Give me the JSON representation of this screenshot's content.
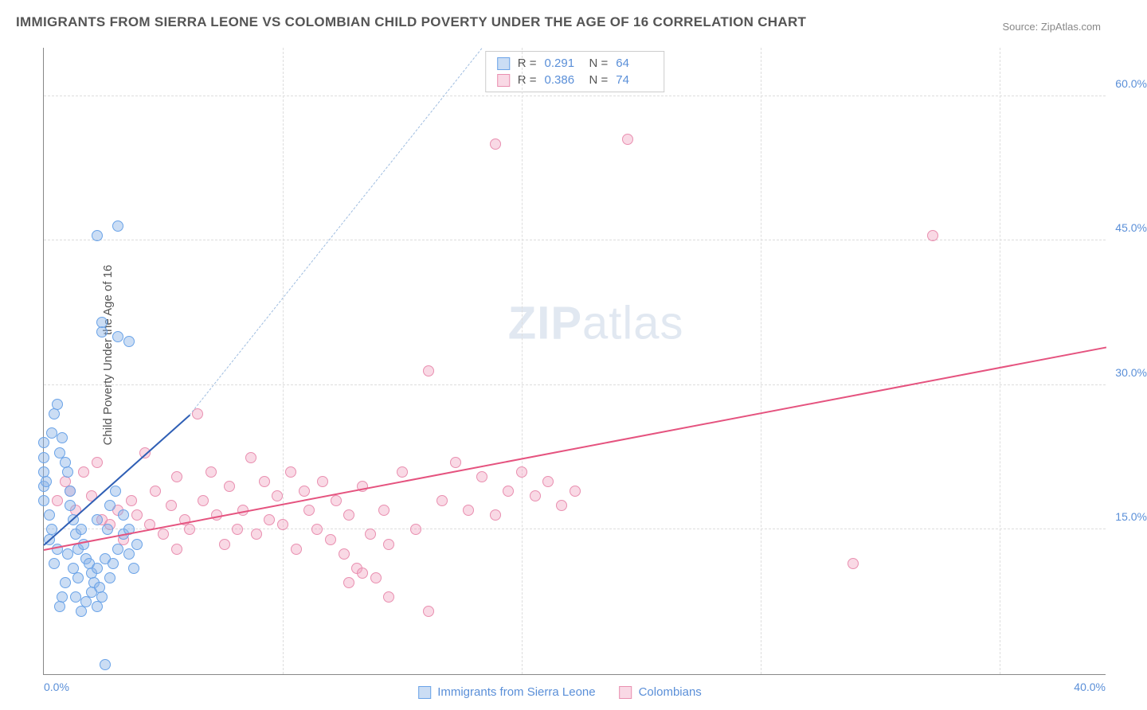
{
  "title": "IMMIGRANTS FROM SIERRA LEONE VS COLOMBIAN CHILD POVERTY UNDER THE AGE OF 16 CORRELATION CHART",
  "source_label": "Source: ZipAtlas.com",
  "ylabel": "Child Poverty Under the Age of 16",
  "watermark_bold": "ZIP",
  "watermark_light": "atlas",
  "chart": {
    "type": "scatter",
    "xlim": [
      0,
      40
    ],
    "ylim": [
      0,
      65
    ],
    "xtick_labels": [
      "0.0%",
      "40.0%"
    ],
    "ytick_values": [
      15,
      30,
      45,
      60
    ],
    "ytick_labels": [
      "15.0%",
      "30.0%",
      "45.0%",
      "60.0%"
    ],
    "xtick_grid": [
      9,
      18,
      27,
      36
    ],
    "background_color": "#ffffff",
    "grid_color": "#dddddd",
    "axis_color": "#888888",
    "tick_label_color": "#5a8fd8",
    "marker_radius": 7,
    "marker_opacity": 0.55
  },
  "series": [
    {
      "key": "sierra_leone",
      "label": "Immigrants from Sierra Leone",
      "color_stroke": "#6aa3e8",
      "color_fill": "rgba(140,180,230,0.45)",
      "r_label": "R =",
      "r_value": "0.291",
      "n_label": "N =",
      "n_value": "64",
      "trend_solid": {
        "x1": 0.0,
        "y1": 13.5,
        "x2": 5.5,
        "y2": 27.0,
        "color": "#2f5fb5"
      },
      "trend_dash": {
        "x1": 5.5,
        "y1": 27.0,
        "x2": 16.5,
        "y2": 65.0,
        "color": "#9fbde0"
      },
      "points": [
        [
          0.0,
          18
        ],
        [
          0.0,
          19.5
        ],
        [
          0.0,
          21
        ],
        [
          0.0,
          22.5
        ],
        [
          0.0,
          24
        ],
        [
          0.1,
          20
        ],
        [
          0.2,
          16.5
        ],
        [
          0.2,
          14
        ],
        [
          0.3,
          15
        ],
        [
          0.4,
          27
        ],
        [
          0.5,
          28
        ],
        [
          0.3,
          25
        ],
        [
          0.6,
          23
        ],
        [
          0.7,
          24.5
        ],
        [
          0.8,
          22
        ],
        [
          0.9,
          21
        ],
        [
          1.0,
          19
        ],
        [
          1.0,
          17.5
        ],
        [
          1.1,
          16
        ],
        [
          1.2,
          14.5
        ],
        [
          1.3,
          13
        ],
        [
          1.4,
          15
        ],
        [
          1.5,
          13.5
        ],
        [
          1.6,
          12
        ],
        [
          1.7,
          11.5
        ],
        [
          1.8,
          10.5
        ],
        [
          1.9,
          9.5
        ],
        [
          2.0,
          11
        ],
        [
          2.1,
          9
        ],
        [
          2.2,
          8
        ],
        [
          2.0,
          7
        ],
        [
          1.8,
          8.5
        ],
        [
          1.6,
          7.5
        ],
        [
          1.4,
          6.5
        ],
        [
          1.2,
          8
        ],
        [
          1.3,
          10
        ],
        [
          1.1,
          11
        ],
        [
          0.9,
          12.5
        ],
        [
          0.8,
          9.5
        ],
        [
          0.7,
          8
        ],
        [
          0.6,
          7
        ],
        [
          0.5,
          13
        ],
        [
          0.4,
          11.5
        ],
        [
          2.3,
          12
        ],
        [
          2.5,
          10
        ],
        [
          2.6,
          11.5
        ],
        [
          2.8,
          13
        ],
        [
          3.0,
          14.5
        ],
        [
          3.2,
          12.5
        ],
        [
          3.4,
          11
        ],
        [
          2.4,
          15
        ],
        [
          2.0,
          16
        ],
        [
          2.5,
          17.5
        ],
        [
          2.7,
          19
        ],
        [
          3.0,
          16.5
        ],
        [
          3.2,
          15
        ],
        [
          3.5,
          13.5
        ],
        [
          2.2,
          35.5
        ],
        [
          2.2,
          36.5
        ],
        [
          2.8,
          35
        ],
        [
          3.2,
          34.5
        ],
        [
          2.0,
          45.5
        ],
        [
          2.8,
          46.5
        ],
        [
          2.3,
          1.0
        ]
      ]
    },
    {
      "key": "colombians",
      "label": "Colombians",
      "color_stroke": "#e98fb0",
      "color_fill": "rgba(240,160,190,0.40)",
      "r_label": "R =",
      "r_value": "0.386",
      "n_label": "N =",
      "n_value": "74",
      "trend_solid": {
        "x1": 0.0,
        "y1": 13.0,
        "x2": 40.0,
        "y2": 34.0,
        "color": "#e5537f"
      },
      "trend_dash": null,
      "points": [
        [
          0.5,
          18
        ],
        [
          0.8,
          20
        ],
        [
          1.0,
          19
        ],
        [
          1.2,
          17
        ],
        [
          1.5,
          21
        ],
        [
          1.8,
          18.5
        ],
        [
          2.0,
          22
        ],
        [
          2.2,
          16
        ],
        [
          2.5,
          15.5
        ],
        [
          2.8,
          17
        ],
        [
          3.0,
          14
        ],
        [
          3.3,
          18
        ],
        [
          3.5,
          16.5
        ],
        [
          3.8,
          23
        ],
        [
          4.0,
          15.5
        ],
        [
          4.2,
          19
        ],
        [
          4.5,
          14.5
        ],
        [
          4.8,
          17.5
        ],
        [
          5.0,
          20.5
        ],
        [
          5.3,
          16
        ],
        [
          5.5,
          15
        ],
        [
          5.8,
          27
        ],
        [
          6.0,
          18
        ],
        [
          6.3,
          21
        ],
        [
          6.5,
          16.5
        ],
        [
          6.8,
          13.5
        ],
        [
          7.0,
          19.5
        ],
        [
          7.3,
          15
        ],
        [
          7.5,
          17
        ],
        [
          7.8,
          22.5
        ],
        [
          8.0,
          14.5
        ],
        [
          8.3,
          20
        ],
        [
          8.5,
          16
        ],
        [
          8.8,
          18.5
        ],
        [
          9.0,
          15.5
        ],
        [
          9.3,
          21
        ],
        [
          9.5,
          13
        ],
        [
          9.8,
          19
        ],
        [
          10.0,
          17
        ],
        [
          10.3,
          15
        ],
        [
          10.5,
          20
        ],
        [
          10.8,
          14
        ],
        [
          11.0,
          18
        ],
        [
          11.3,
          12.5
        ],
        [
          11.5,
          16.5
        ],
        [
          11.8,
          11
        ],
        [
          12.0,
          19.5
        ],
        [
          12.3,
          14.5
        ],
        [
          12.5,
          10
        ],
        [
          12.8,
          17
        ],
        [
          13.0,
          13.5
        ],
        [
          13.5,
          21
        ],
        [
          14.0,
          15
        ],
        [
          14.5,
          31.5
        ],
        [
          15.0,
          18
        ],
        [
          15.5,
          22
        ],
        [
          16.0,
          17
        ],
        [
          16.5,
          20.5
        ],
        [
          17.0,
          16.5
        ],
        [
          17.5,
          19
        ],
        [
          18.0,
          21
        ],
        [
          18.5,
          18.5
        ],
        [
          19.0,
          20
        ],
        [
          19.5,
          17.5
        ],
        [
          20.0,
          19
        ],
        [
          14.5,
          6.5
        ],
        [
          13.0,
          8
        ],
        [
          11.5,
          9.5
        ],
        [
          12.0,
          10.5
        ],
        [
          17.0,
          55
        ],
        [
          22.0,
          55.5
        ],
        [
          33.5,
          45.5
        ],
        [
          30.5,
          11.5
        ],
        [
          5.0,
          13
        ]
      ]
    }
  ]
}
